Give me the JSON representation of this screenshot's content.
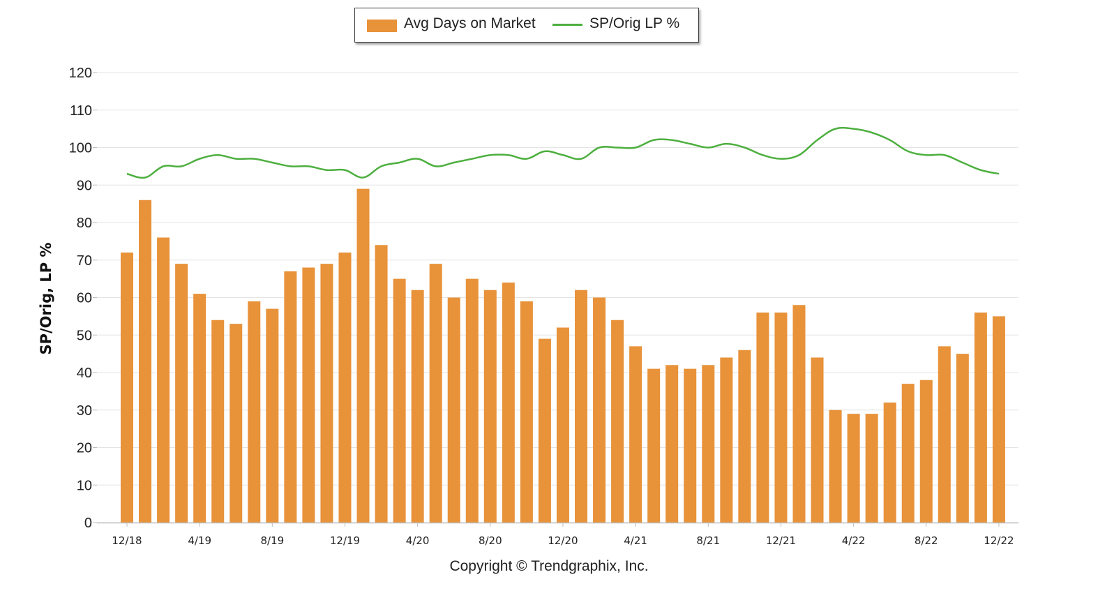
{
  "chart_data": {
    "type": "bar",
    "ylabel": "SP/Orig, LP %",
    "ylim": [
      0,
      120
    ],
    "yticks": [
      0,
      10,
      20,
      30,
      40,
      50,
      60,
      70,
      80,
      90,
      100,
      110,
      120
    ],
    "x_tick_labels": [
      "12/18",
      "4/19",
      "8/19",
      "12/19",
      "4/20",
      "8/20",
      "12/20",
      "4/21",
      "8/21",
      "12/21",
      "4/22",
      "8/22",
      "12/22"
    ],
    "x_tick_every": 4,
    "grid": true,
    "legend_position": "top-center",
    "series": [
      {
        "name": "Avg Days on Market",
        "type": "bar",
        "color": "#E8923A",
        "values": [
          72,
          86,
          76,
          69,
          61,
          54,
          53,
          59,
          57,
          67,
          68,
          69,
          72,
          89,
          74,
          65,
          62,
          69,
          60,
          65,
          62,
          64,
          59,
          49,
          52,
          62,
          60,
          54,
          47,
          41,
          42,
          41,
          42,
          44,
          46,
          56,
          56,
          58,
          44,
          30,
          29,
          29,
          32,
          37,
          38,
          47,
          45,
          56,
          55
        ]
      },
      {
        "name": "SP/Orig LP %",
        "type": "line",
        "color": "#4DAF3F",
        "values": [
          93,
          92,
          95,
          95,
          97,
          98,
          97,
          97,
          96,
          95,
          95,
          94,
          94,
          92,
          95,
          96,
          97,
          95,
          96,
          97,
          98,
          98,
          97,
          99,
          98,
          97,
          100,
          100,
          100,
          102,
          102,
          101,
          100,
          101,
          100,
          98,
          97,
          98,
          102,
          105,
          105,
          104,
          102,
          99,
          98,
          98,
          96,
          94,
          93
        ]
      }
    ]
  },
  "legend": {
    "bar_label": "Avg Days on Market",
    "line_label": "SP/Orig LP %"
  },
  "copyright": "Copyright © Trendgraphix, Inc."
}
